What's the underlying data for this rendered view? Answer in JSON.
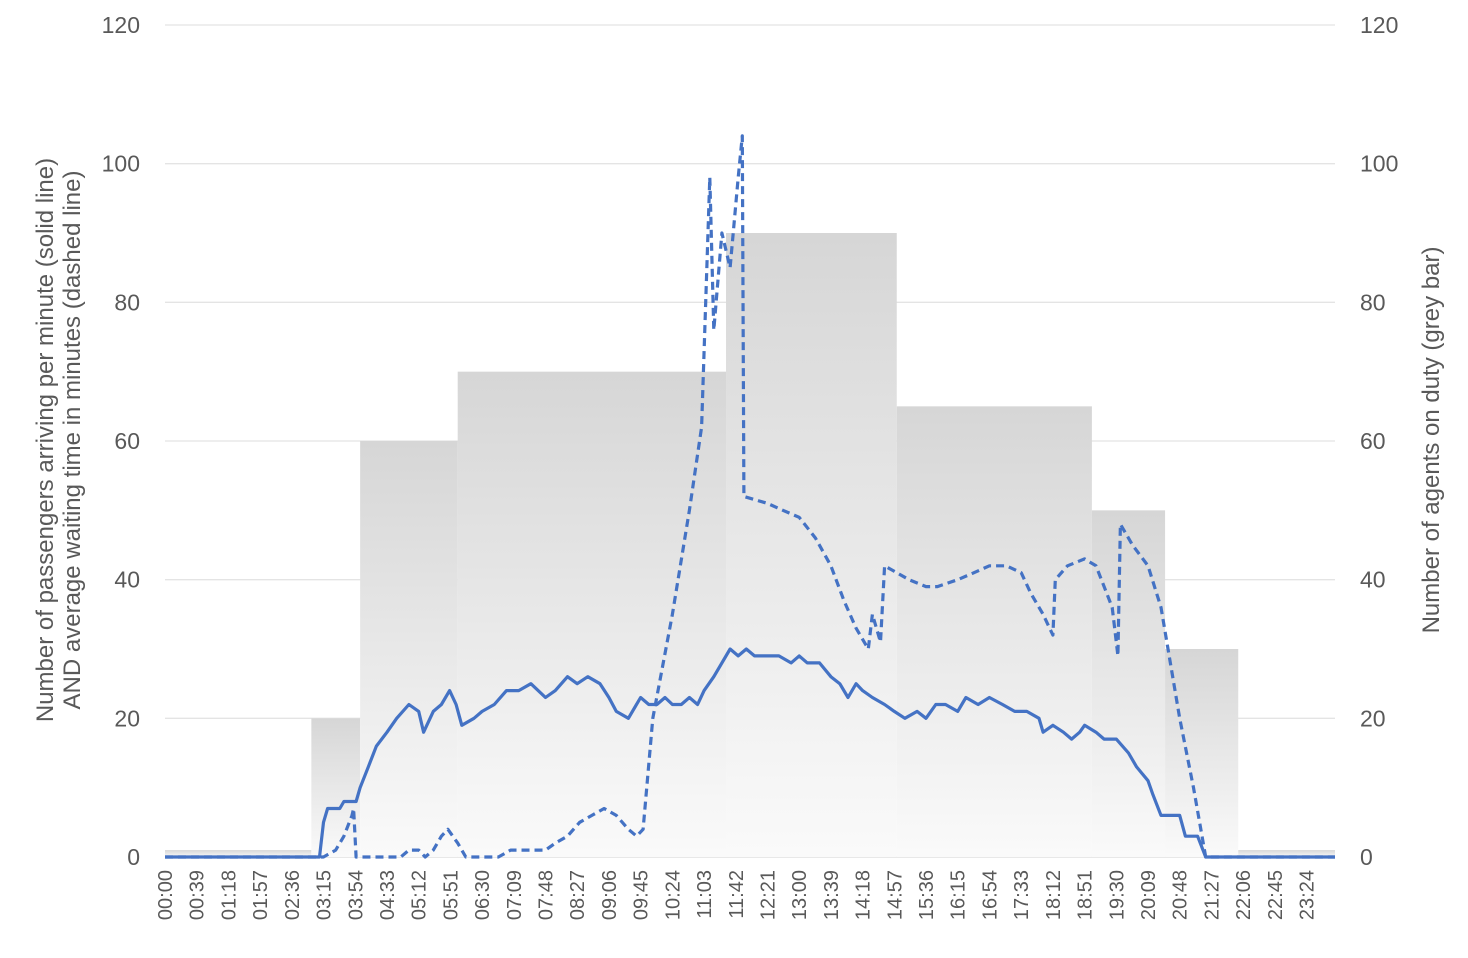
{
  "chart_data": {
    "type": "line",
    "x_axis": {
      "tick_labels": [
        "00:00",
        "00:39",
        "01:18",
        "01:57",
        "02:36",
        "03:15",
        "03:54",
        "04:33",
        "05:12",
        "05:51",
        "06:30",
        "07:09",
        "07:48",
        "08:27",
        "09:06",
        "09:45",
        "10:24",
        "11:03",
        "11:42",
        "12:21",
        "13:00",
        "13:39",
        "14:18",
        "14:57",
        "15:36",
        "16:15",
        "16:54",
        "17:33",
        "18:12",
        "18:51",
        "19:30",
        "20:09",
        "20:48",
        "21:27",
        "22:06",
        "22:45",
        "23:24"
      ],
      "range": [
        "00:00",
        "23:59"
      ]
    },
    "y_left": {
      "label_line1": "Number of passengers arriving per minute (solid line)",
      "label_line2": "AND average waiting time in minutes (dashed line)",
      "ticks": [
        0,
        20,
        40,
        60,
        80,
        100,
        120
      ],
      "ylim": [
        0,
        120
      ]
    },
    "y_right": {
      "label": "Number of agents on duty  (grey bar)",
      "ticks": [
        0,
        20,
        40,
        60,
        80,
        100,
        120
      ],
      "ylim": [
        0,
        120
      ]
    },
    "grid": "horizontal",
    "series": [
      {
        "name": "Number of agents on duty",
        "type": "step-bar",
        "color": "#d9d9d9",
        "axis": "right",
        "segments": [
          {
            "start": "00:00",
            "end": "03:00",
            "value": 1
          },
          {
            "start": "03:00",
            "end": "04:00",
            "value": 20
          },
          {
            "start": "04:00",
            "end": "06:00",
            "value": 60
          },
          {
            "start": "06:00",
            "end": "11:30",
            "value": 70
          },
          {
            "start": "11:30",
            "end": "15:00",
            "value": 90
          },
          {
            "start": "15:00",
            "end": "19:00",
            "value": 65
          },
          {
            "start": "19:00",
            "end": "20:30",
            "value": 50
          },
          {
            "start": "20:30",
            "end": "22:00",
            "value": 30
          },
          {
            "start": "22:00",
            "end": "23:59",
            "value": 1
          }
        ]
      },
      {
        "name": "Number of passengers arriving per minute",
        "type": "line",
        "style": "solid",
        "color": "#4472c4",
        "axis": "left",
        "points": [
          [
            "00:00",
            0
          ],
          [
            "03:10",
            0
          ],
          [
            "03:15",
            5
          ],
          [
            "03:20",
            7
          ],
          [
            "03:35",
            7
          ],
          [
            "03:40",
            8
          ],
          [
            "03:55",
            8
          ],
          [
            "04:00",
            10
          ],
          [
            "04:10",
            13
          ],
          [
            "04:20",
            16
          ],
          [
            "04:33",
            18
          ],
          [
            "04:45",
            20
          ],
          [
            "05:00",
            22
          ],
          [
            "05:12",
            21
          ],
          [
            "05:18",
            18
          ],
          [
            "05:30",
            21
          ],
          [
            "05:40",
            22
          ],
          [
            "05:50",
            24
          ],
          [
            "05:58",
            22
          ],
          [
            "06:05",
            19
          ],
          [
            "06:20",
            20
          ],
          [
            "06:30",
            21
          ],
          [
            "06:45",
            22
          ],
          [
            "07:00",
            24
          ],
          [
            "07:15",
            24
          ],
          [
            "07:30",
            25
          ],
          [
            "07:48",
            23
          ],
          [
            "08:00",
            24
          ],
          [
            "08:15",
            26
          ],
          [
            "08:27",
            25
          ],
          [
            "08:40",
            26
          ],
          [
            "08:55",
            25
          ],
          [
            "09:06",
            23
          ],
          [
            "09:15",
            21
          ],
          [
            "09:30",
            20
          ],
          [
            "09:45",
            23
          ],
          [
            "09:55",
            22
          ],
          [
            "10:05",
            22
          ],
          [
            "10:15",
            23
          ],
          [
            "10:24",
            22
          ],
          [
            "10:35",
            22
          ],
          [
            "10:45",
            23
          ],
          [
            "10:55",
            22
          ],
          [
            "11:03",
            24
          ],
          [
            "11:15",
            26
          ],
          [
            "11:25",
            28
          ],
          [
            "11:35",
            30
          ],
          [
            "11:45",
            29
          ],
          [
            "11:55",
            30
          ],
          [
            "12:05",
            29
          ],
          [
            "12:21",
            29
          ],
          [
            "12:35",
            29
          ],
          [
            "12:50",
            28
          ],
          [
            "13:00",
            29
          ],
          [
            "13:10",
            28
          ],
          [
            "13:25",
            28
          ],
          [
            "13:39",
            26
          ],
          [
            "13:50",
            25
          ],
          [
            "14:00",
            23
          ],
          [
            "14:10",
            25
          ],
          [
            "14:18",
            24
          ],
          [
            "14:30",
            23
          ],
          [
            "14:45",
            22
          ],
          [
            "14:57",
            21
          ],
          [
            "15:10",
            20
          ],
          [
            "15:25",
            21
          ],
          [
            "15:36",
            20
          ],
          [
            "15:48",
            22
          ],
          [
            "16:00",
            22
          ],
          [
            "16:15",
            21
          ],
          [
            "16:25",
            23
          ],
          [
            "16:40",
            22
          ],
          [
            "16:54",
            23
          ],
          [
            "17:10",
            22
          ],
          [
            "17:25",
            21
          ],
          [
            "17:40",
            21
          ],
          [
            "17:55",
            20
          ],
          [
            "18:00",
            18
          ],
          [
            "18:12",
            19
          ],
          [
            "18:25",
            18
          ],
          [
            "18:35",
            17
          ],
          [
            "18:45",
            18
          ],
          [
            "18:51",
            19
          ],
          [
            "19:05",
            18
          ],
          [
            "19:15",
            17
          ],
          [
            "19:30",
            17
          ],
          [
            "19:45",
            15
          ],
          [
            "19:55",
            13
          ],
          [
            "20:09",
            11
          ],
          [
            "20:15",
            9
          ],
          [
            "20:25",
            6
          ],
          [
            "20:48",
            6
          ],
          [
            "20:55",
            3
          ],
          [
            "21:10",
            3
          ],
          [
            "21:20",
            0
          ],
          [
            "23:59",
            0
          ]
        ]
      },
      {
        "name": "Average waiting time in minutes",
        "type": "line",
        "style": "dashed",
        "color": "#4472c4",
        "axis": "left",
        "points": [
          [
            "00:00",
            0
          ],
          [
            "03:15",
            0
          ],
          [
            "03:30",
            1
          ],
          [
            "03:40",
            3
          ],
          [
            "03:50",
            6
          ],
          [
            "03:52",
            7
          ],
          [
            "03:55",
            0
          ],
          [
            "04:33",
            0
          ],
          [
            "04:50",
            0
          ],
          [
            "05:00",
            1
          ],
          [
            "05:12",
            1
          ],
          [
            "05:20",
            0
          ],
          [
            "05:30",
            1
          ],
          [
            "05:40",
            3
          ],
          [
            "05:48",
            4
          ],
          [
            "06:00",
            2
          ],
          [
            "06:10",
            0
          ],
          [
            "06:30",
            0
          ],
          [
            "06:50",
            0
          ],
          [
            "07:05",
            1
          ],
          [
            "07:30",
            1
          ],
          [
            "07:48",
            1
          ],
          [
            "08:00",
            2
          ],
          [
            "08:15",
            3
          ],
          [
            "08:30",
            5
          ],
          [
            "08:45",
            6
          ],
          [
            "09:00",
            7
          ],
          [
            "09:15",
            6
          ],
          [
            "09:30",
            4
          ],
          [
            "09:40",
            3
          ],
          [
            "09:48",
            4
          ],
          [
            "10:00",
            20
          ],
          [
            "10:24",
            35
          ],
          [
            "10:45",
            50
          ],
          [
            "11:00",
            62
          ],
          [
            "11:05",
            80
          ],
          [
            "11:10",
            98
          ],
          [
            "11:15",
            76
          ],
          [
            "11:25",
            90
          ],
          [
            "11:35",
            85
          ],
          [
            "11:45",
            98
          ],
          [
            "11:50",
            104
          ],
          [
            "11:52",
            52
          ],
          [
            "12:21",
            51
          ],
          [
            "12:40",
            50
          ],
          [
            "13:00",
            49
          ],
          [
            "13:20",
            46
          ],
          [
            "13:39",
            42
          ],
          [
            "13:55",
            37
          ],
          [
            "14:10",
            33
          ],
          [
            "14:25",
            30
          ],
          [
            "14:30",
            35
          ],
          [
            "14:40",
            31
          ],
          [
            "14:45",
            42
          ],
          [
            "15:00",
            41
          ],
          [
            "15:15",
            40
          ],
          [
            "15:36",
            39
          ],
          [
            "15:50",
            39
          ],
          [
            "16:15",
            40
          ],
          [
            "16:35",
            41
          ],
          [
            "16:54",
            42
          ],
          [
            "17:15",
            42
          ],
          [
            "17:33",
            41
          ],
          [
            "17:45",
            38
          ],
          [
            "18:00",
            35
          ],
          [
            "18:12",
            32
          ],
          [
            "18:15",
            40
          ],
          [
            "18:30",
            42
          ],
          [
            "18:51",
            43
          ],
          [
            "19:05",
            42
          ],
          [
            "19:15",
            39
          ],
          [
            "19:25",
            36
          ],
          [
            "19:30",
            31
          ],
          [
            "19:32",
            29
          ],
          [
            "19:35",
            48
          ],
          [
            "19:50",
            45
          ],
          [
            "20:09",
            42
          ],
          [
            "20:25",
            36
          ],
          [
            "20:48",
            20
          ],
          [
            "21:05",
            10
          ],
          [
            "21:20",
            0
          ],
          [
            "23:59",
            0
          ]
        ]
      }
    ]
  }
}
